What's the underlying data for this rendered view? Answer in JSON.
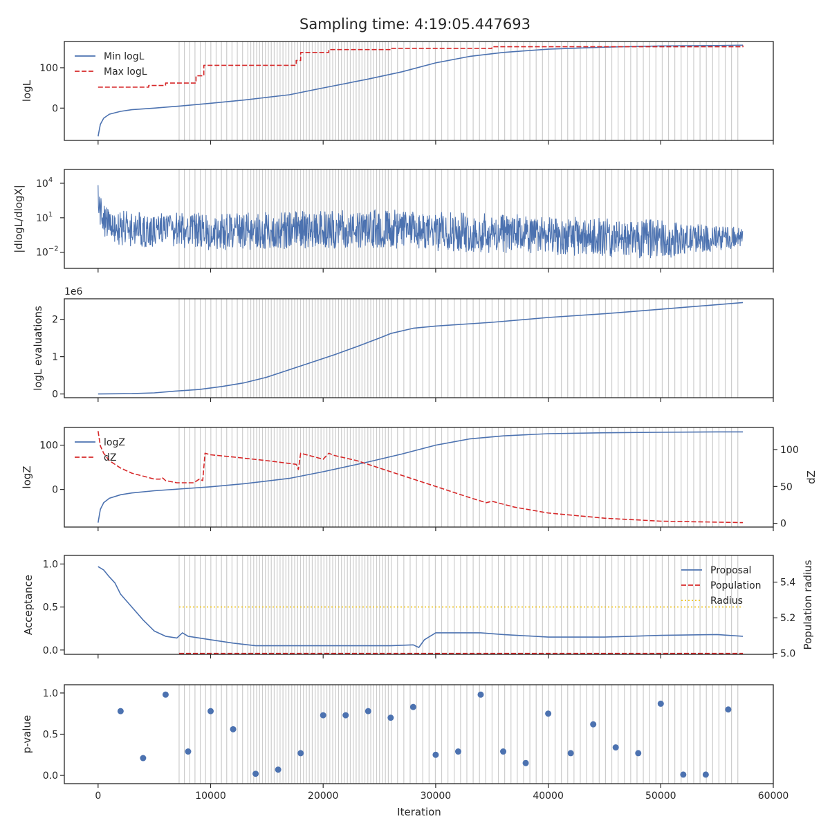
{
  "figure": {
    "title": "Sampling time: 4:19:05.447693",
    "xlabel": "Iteration",
    "xlim": [
      -3000,
      60000
    ],
    "x_ticks": [
      0,
      10000,
      20000,
      30000,
      40000,
      50000,
      60000
    ],
    "x_tick_labels": [
      "0",
      "10000",
      "20000",
      "30000",
      "40000",
      "50000",
      "60000"
    ],
    "insertion_markers": {
      "description": "light grey vertical lines",
      "color": "#cccccc",
      "start": 7200,
      "end": 57300
    },
    "colors": {
      "blue": "#4c72b0",
      "red": "#d62728",
      "yellow": "#f0c419",
      "grey": "#cccccc",
      "axis": "#262626"
    }
  },
  "chart_data": [
    {
      "id": "logl",
      "type": "line",
      "ylabel": "logL",
      "ylim": [
        -80,
        165
      ],
      "y_ticks": [
        0,
        100
      ],
      "y_tick_labels": [
        "0",
        "100"
      ],
      "legend": {
        "placement": "top-left",
        "entries": [
          "Min logL",
          "Max logL"
        ]
      },
      "series": [
        {
          "name": "Min logL",
          "style": "solid",
          "color": "#4c72b0",
          "x": [
            0,
            200,
            500,
            1000,
            2000,
            3000,
            5000,
            7200,
            10000,
            13000,
            17000,
            20000,
            24000,
            27000,
            30000,
            33000,
            36000,
            40000,
            45000,
            50000,
            55000,
            57300
          ],
          "y": [
            -70,
            -40,
            -25,
            -15,
            -8,
            -4,
            0,
            5,
            12,
            20,
            33,
            50,
            72,
            90,
            112,
            128,
            138,
            146,
            151,
            154,
            155,
            156
          ]
        },
        {
          "name": "Max logL",
          "style": "dashed",
          "color": "#d62728",
          "step": true,
          "x": [
            0,
            4500,
            6000,
            8700,
            9400,
            17600,
            18000,
            20500,
            26000,
            35000,
            57300
          ],
          "y": [
            52,
            56,
            62,
            80,
            106,
            118,
            138,
            145,
            148,
            152,
            155
          ]
        }
      ]
    },
    {
      "id": "dlogl",
      "type": "line",
      "ylabel": "|dlogL/dlogX|",
      "yscale": "log",
      "ylim_exp": [
        -3.4,
        5.2
      ],
      "y_ticks_exp": [
        -2,
        1,
        4
      ],
      "y_tick_labels": [
        "10",
        "10",
        "10"
      ],
      "y_tick_exponents": [
        "−2",
        "1",
        "4"
      ],
      "series": [
        {
          "name": "",
          "style": "noisy-band",
          "color": "#4c72b0",
          "x": [
            0,
            300,
            1000,
            3000,
            10000,
            20000,
            25000,
            30000,
            40000,
            50000,
            57300
          ],
          "upper_exp": [
            4.3,
            2.8,
            1.8,
            1.5,
            1.4,
            1.6,
            1.8,
            1.5,
            1.2,
            0.8,
            0.2
          ],
          "lower_exp": [
            0.5,
            -0.2,
            -1.2,
            -1.5,
            -1.8,
            -1.7,
            -1.6,
            -1.9,
            -2.2,
            -2.6,
            -1.6
          ]
        }
      ]
    },
    {
      "id": "evals",
      "type": "line",
      "ylabel": "logL evaluations",
      "offset_text": "1e6",
      "ylim": [
        -0.1,
        2.55
      ],
      "y_ticks": [
        0,
        1,
        2
      ],
      "y_tick_labels": [
        "0",
        "1",
        "2"
      ],
      "series": [
        {
          "name": "",
          "style": "solid",
          "color": "#4c72b0",
          "x": [
            0,
            3000,
            5000,
            7000,
            9000,
            11000,
            13000,
            15000,
            17000,
            19000,
            21000,
            23000,
            25000,
            26000,
            28000,
            30000,
            35000,
            40000,
            45000,
            50000,
            57300
          ],
          "y": [
            0,
            0.01,
            0.03,
            0.08,
            0.12,
            0.2,
            0.3,
            0.45,
            0.65,
            0.85,
            1.05,
            1.27,
            1.5,
            1.62,
            1.76,
            1.82,
            1.92,
            2.05,
            2.15,
            2.27,
            2.45
          ]
        }
      ]
    },
    {
      "id": "logz",
      "type": "line",
      "ylabel": "logZ",
      "ylabel_right": "dZ",
      "ylim": [
        -85,
        140
      ],
      "y_ticks": [
        0,
        100
      ],
      "y_tick_labels": [
        "0",
        "100"
      ],
      "ylim_right": [
        -5,
        130
      ],
      "y_ticks_right": [
        0,
        50,
        100
      ],
      "y_tick_labels_right": [
        "0",
        "50",
        "100"
      ],
      "legend": {
        "placement": "top-left",
        "entries": [
          "logZ",
          "dZ"
        ]
      },
      "series": [
        {
          "name": "logZ",
          "style": "solid",
          "color": "#4c72b0",
          "axis": "left",
          "x": [
            0,
            200,
            500,
            1000,
            2000,
            3000,
            5000,
            7200,
            10000,
            13000,
            17000,
            20000,
            24000,
            27000,
            30000,
            33000,
            36000,
            40000,
            45000,
            50000,
            55000,
            57300
          ],
          "y": [
            -75,
            -45,
            -30,
            -20,
            -12,
            -8,
            -3,
            1,
            6,
            13,
            25,
            40,
            62,
            80,
            100,
            114,
            121,
            126,
            128,
            129,
            130,
            130
          ]
        },
        {
          "name": "dZ",
          "style": "dashed",
          "color": "#d62728",
          "axis": "right",
          "x": [
            0,
            200,
            500,
            1000,
            2000,
            3000,
            4500,
            5000,
            5500,
            5700,
            6000,
            7000,
            8500,
            9000,
            9300,
            9500,
            10000,
            12000,
            15000,
            17600,
            17800,
            18000,
            20000,
            20500,
            21000,
            23000,
            25000,
            26000,
            27000,
            30000,
            33000,
            34500,
            35000,
            37000,
            40000,
            45000,
            50000,
            57300
          ],
          "y": [
            125,
            105,
            95,
            85,
            75,
            68,
            62,
            60,
            60,
            62,
            58,
            55,
            55,
            60,
            58,
            95,
            93,
            90,
            85,
            80,
            73,
            95,
            87,
            95,
            92,
            85,
            75,
            70,
            65,
            50,
            35,
            28,
            30,
            22,
            14,
            7,
            3,
            1
          ]
        }
      ]
    },
    {
      "id": "accept",
      "type": "line",
      "ylabel": "Acceptance",
      "ylabel_right": "Population radius",
      "ylim": [
        -0.05,
        1.1
      ],
      "y_ticks": [
        0,
        0.5,
        1
      ],
      "y_tick_labels": [
        "0.0",
        "0.5",
        "1.0"
      ],
      "ylim_right": [
        4.995,
        5.55
      ],
      "y_ticks_right": [
        5.0,
        5.2,
        5.4
      ],
      "y_tick_labels_right": [
        "5.0",
        "5.2",
        "5.4"
      ],
      "legend": {
        "placement": "top-right",
        "entries": [
          "Proposal",
          "Population",
          "Radius"
        ]
      },
      "series": [
        {
          "name": "Proposal",
          "style": "solid",
          "color": "#4c72b0",
          "axis": "left",
          "x": [
            0,
            500,
            1000,
            1500,
            2000,
            3000,
            4000,
            5000,
            6000,
            7000,
            7500,
            8000,
            10000,
            12000,
            14000,
            16000,
            18000,
            20000,
            22000,
            24000,
            26000,
            28000,
            28500,
            29000,
            30000,
            32000,
            34000,
            36000,
            40000,
            45000,
            50000,
            55000,
            57300
          ],
          "y": [
            0.97,
            0.93,
            0.85,
            0.78,
            0.65,
            0.5,
            0.35,
            0.22,
            0.16,
            0.14,
            0.2,
            0.16,
            0.12,
            0.08,
            0.05,
            0.05,
            0.05,
            0.05,
            0.05,
            0.05,
            0.05,
            0.06,
            0.03,
            0.12,
            0.2,
            0.2,
            0.2,
            0.18,
            0.15,
            0.15,
            0.17,
            0.18,
            0.16
          ]
        },
        {
          "name": "Population",
          "style": "dashed",
          "color": "#d62728",
          "axis": "right",
          "x": [
            7200,
            57300
          ],
          "y": [
            5.0,
            5.0
          ]
        },
        {
          "name": "Radius",
          "style": "dotted",
          "color": "#f0c419",
          "axis": "left",
          "x": [
            7200,
            57300
          ],
          "y": [
            0.5,
            0.5
          ]
        }
      ]
    },
    {
      "id": "pvalue",
      "type": "scatter",
      "ylabel": "p-value",
      "ylim": [
        -0.1,
        1.1
      ],
      "y_ticks": [
        0,
        0.5,
        1
      ],
      "y_tick_labels": [
        "0.0",
        "0.5",
        "1.0"
      ],
      "series": [
        {
          "name": "",
          "color": "#4c72b0",
          "x": [
            2000,
            4000,
            6000,
            8000,
            10000,
            12000,
            14000,
            16000,
            18000,
            20000,
            22000,
            24000,
            26000,
            28000,
            30000,
            32000,
            34000,
            36000,
            38000,
            40000,
            42000,
            44000,
            46000,
            48000,
            50000,
            52000,
            54000,
            56000
          ],
          "y": [
            0.78,
            0.21,
            0.98,
            0.29,
            0.78,
            0.56,
            0.02,
            0.07,
            0.27,
            0.73,
            0.73,
            0.78,
            0.7,
            0.83,
            0.25,
            0.29,
            0.98,
            0.29,
            0.15,
            0.75,
            0.27,
            0.62,
            0.34,
            0.27,
            0.87,
            0.01,
            0.01,
            0.8
          ]
        }
      ]
    }
  ]
}
